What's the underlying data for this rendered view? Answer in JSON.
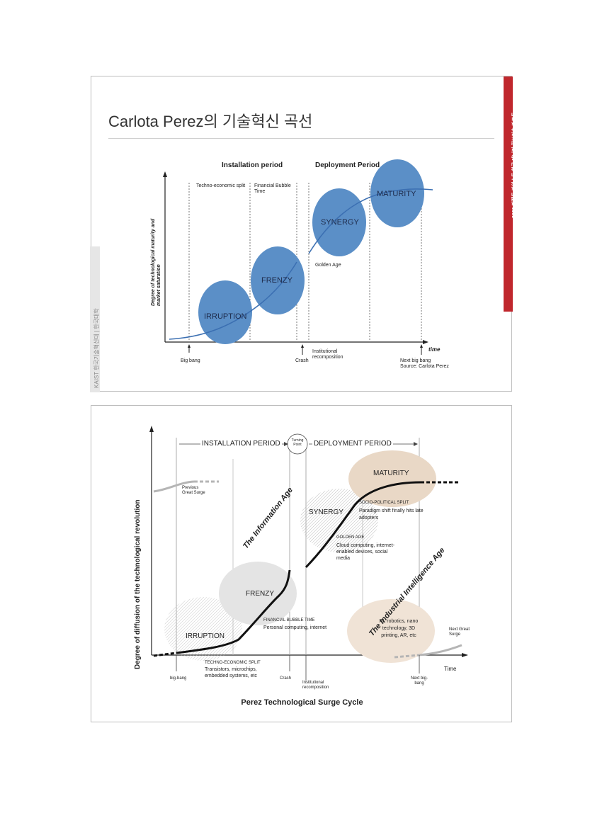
{
  "slide1": {
    "title": "Carlota Perez의 기술혁신 곡선",
    "side_tab": "2020 퍼펙트 카이스트 한국 에너지 정보기술 리포트",
    "side_gray": "KAIST 한국기술혁신대 | 한국대학",
    "colors": {
      "accent_red": "#c0272d",
      "bubble_blue": "#5b8fc7",
      "curve_blue": "#3b6fb2",
      "side_gray": "#9a9a9a"
    },
    "periods": {
      "installation": "Installation period",
      "deployment": "Deployment Period"
    },
    "phases": {
      "techno_economic": "Techno-economic split",
      "financial_bubble": "Financial Bubble Time"
    },
    "bubbles": {
      "irruption": "IRRUPTION",
      "frenzy": "FRENZY",
      "synergy": "SYNERGY",
      "maturity": "MATURITY"
    },
    "golden_age": "Golden Age",
    "y_axis": "Degree of technological maturity and market saturation",
    "x_axis": "time",
    "x_events": {
      "big_bang": "Big bang",
      "crash": "Crash",
      "institutional": "Institutional recomposition",
      "next_big_bang": "Next big bang"
    },
    "source": "Source: Carlota Perez"
  },
  "slide2": {
    "periods": {
      "installation": "INSTALLATION PERIOD",
      "turning_point": "Turning Point",
      "deployment": "DEPLOYMENT PERIOD"
    },
    "previous_surge": "Previous Great Surge",
    "next_surge": "Next Great Surge",
    "ages": {
      "information": "The Information Age",
      "industrial_intelligence": "The Industrial Intelligence Age"
    },
    "bubbles": {
      "irruption": "IRRUPTION",
      "frenzy": "FRENZY",
      "synergy": "SYNERGY",
      "maturity": "MATURITY"
    },
    "phases": {
      "techno_economic": "TECHNO-ECONOMIC SPLIT",
      "techno_examples": "Transistors, microchips, embedded systems, etc",
      "financial_bubble": "FINANCIAL BUBBLE TIME",
      "financial_examples": "Personal computing, internet",
      "golden_age": "GOLDEN AGE",
      "golden_examples": "Cloud computing, internet-enabled devices, social media",
      "socio_political": "SOCIO-POLITICAL SPLIT",
      "socio_examples": "Paradigm shift finally hits late adopters",
      "ai_examples": "AI, robotics, nano technology, 3D printing, AR, etc"
    },
    "y_axis": "Degree of diffusion of the technological revolution",
    "x_axis": "Time",
    "x_events": {
      "big_bang": "big-bang",
      "crash": "Crash",
      "institutional": "Institutional recomposition",
      "next_big_bang": "Next big-bang"
    },
    "caption": "Perez Technological Surge Cycle",
    "colors": {
      "beige": "#e9d8c6",
      "gray_bubble": "#dcdcdc",
      "curve": "#111111",
      "gray_line": "#b5b5b5"
    }
  }
}
